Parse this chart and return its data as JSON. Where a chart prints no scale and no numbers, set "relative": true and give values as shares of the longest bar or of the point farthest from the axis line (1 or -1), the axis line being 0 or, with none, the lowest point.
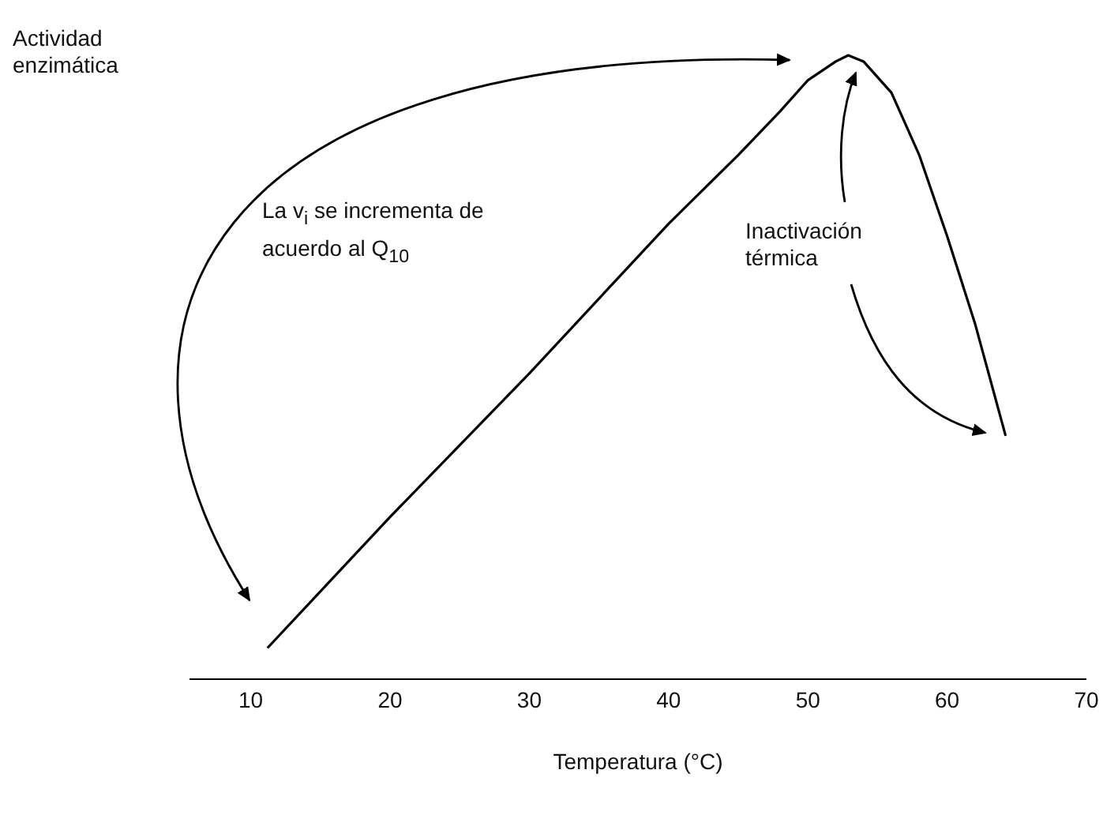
{
  "chart_data": {
    "type": "line",
    "relative": true,
    "ylabel": "Actividad enzimática",
    "xlabel": "Temperatura (°C)",
    "x": [
      11.2,
      20,
      30,
      40,
      45,
      48,
      50,
      52,
      52.9,
      54,
      56,
      58,
      60,
      62,
      64.2
    ],
    "series": [
      {
        "color": "#000000",
        "values": [
          0.05,
          0.26,
          0.49,
          0.73,
          0.84,
          0.91,
          0.96,
          0.99,
          1,
          0.99,
          0.94,
          0.84,
          0.71,
          0.57,
          0.39
        ]
      }
    ],
    "xlim": [
      5.6,
      70
    ],
    "xticks": [
      10,
      20,
      30,
      40,
      50,
      60,
      70
    ],
    "grid": false,
    "legend": false,
    "annotations": [
      "La v$_{i}$ se incrementa de acuerdo al Q$_{10}$",
      "Inactivación térmica"
    ]
  }
}
